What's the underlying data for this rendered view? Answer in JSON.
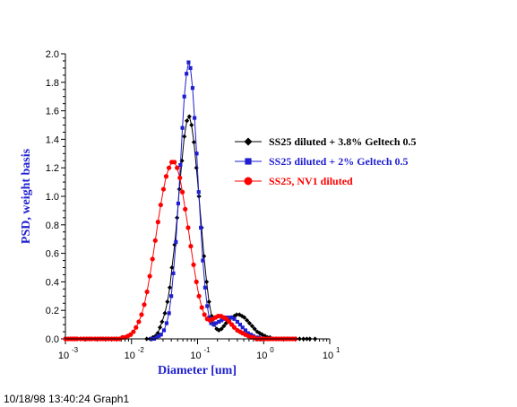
{
  "chart_data": {
    "type": "line",
    "title": "",
    "xlabel": "Diameter [um]",
    "ylabel": "PSD, weight basis",
    "xscale": "log",
    "xlim": [
      0.001,
      10
    ],
    "ylim": [
      0.0,
      2.0
    ],
    "x_ticks": [
      {
        "value": 0.001,
        "base": "10",
        "exp": "-3"
      },
      {
        "value": 0.01,
        "base": "10",
        "exp": "-2"
      },
      {
        "value": 0.1,
        "base": "10",
        "exp": "-1"
      },
      {
        "value": 1,
        "base": "10",
        "exp": "0"
      },
      {
        "value": 10,
        "base": "10",
        "exp": "1"
      }
    ],
    "y_ticks": [
      "0.0",
      "0.2",
      "0.4",
      "0.6",
      "0.8",
      "1.0",
      "1.2",
      "1.4",
      "1.6",
      "1.8",
      "2.0"
    ],
    "legend_position": "right",
    "series": [
      {
        "name": "SS25 diluted + 3.8% Geltech 0.5",
        "color": "#000000",
        "marker": "diamond",
        "x": [
          0.017,
          0.019,
          0.021,
          0.023,
          0.025,
          0.027,
          0.029,
          0.032,
          0.035,
          0.038,
          0.041,
          0.045,
          0.049,
          0.053,
          0.058,
          0.063,
          0.069,
          0.075,
          0.081,
          0.088,
          0.096,
          0.105,
          0.115,
          0.125,
          0.137,
          0.149,
          0.163,
          0.178,
          0.195,
          0.21,
          0.23,
          0.25,
          0.27,
          0.3,
          0.33,
          0.36,
          0.39,
          0.43,
          0.47,
          0.51,
          0.56,
          0.61,
          0.67,
          0.73,
          0.8,
          0.87,
          0.95,
          1.05,
          1.15,
          1.25,
          1.4,
          1.55,
          1.7,
          1.9,
          2.1,
          2.3,
          2.5,
          2.8,
          3.1,
          3.5,
          4.0,
          4.5,
          5.0,
          6.0
        ],
        "y": [
          0.0,
          0.0,
          0.01,
          0.02,
          0.04,
          0.08,
          0.12,
          0.18,
          0.26,
          0.36,
          0.5,
          0.66,
          0.85,
          1.05,
          1.25,
          1.42,
          1.53,
          1.56,
          1.5,
          1.38,
          1.2,
          1.0,
          0.78,
          0.58,
          0.4,
          0.26,
          0.16,
          0.1,
          0.07,
          0.06,
          0.07,
          0.09,
          0.11,
          0.13,
          0.15,
          0.16,
          0.17,
          0.17,
          0.16,
          0.15,
          0.13,
          0.11,
          0.09,
          0.07,
          0.05,
          0.04,
          0.03,
          0.02,
          0.01,
          0.01,
          0.0,
          0.0,
          0.0,
          0.0,
          0.0,
          0.0,
          0.0,
          0.0,
          0.0,
          0.0,
          0.0,
          0.0,
          0.0,
          0.0
        ]
      },
      {
        "name": "SS25 diluted + 2% Geltech 0.5",
        "color": "#1f1fd0",
        "marker": "square",
        "x": [
          0.02,
          0.022,
          0.024,
          0.026,
          0.028,
          0.031,
          0.034,
          0.037,
          0.04,
          0.043,
          0.047,
          0.051,
          0.055,
          0.059,
          0.063,
          0.068,
          0.073,
          0.078,
          0.084,
          0.09,
          0.097,
          0.104,
          0.112,
          0.12,
          0.13,
          0.14,
          0.15,
          0.16,
          0.175,
          0.19,
          0.21,
          0.23,
          0.25,
          0.27,
          0.3,
          0.33,
          0.36,
          0.4,
          0.44,
          0.48,
          0.53,
          0.58,
          0.64,
          0.7,
          0.77,
          0.85,
          0.93,
          1.02,
          1.12,
          1.25,
          1.4,
          1.6,
          1.8,
          2.0,
          2.3,
          2.6,
          3.0
        ],
        "y": [
          0.0,
          0.0,
          0.01,
          0.02,
          0.03,
          0.06,
          0.11,
          0.18,
          0.3,
          0.46,
          0.68,
          0.95,
          1.22,
          1.48,
          1.7,
          1.86,
          1.94,
          1.9,
          1.76,
          1.55,
          1.3,
          1.03,
          0.78,
          0.55,
          0.36,
          0.23,
          0.15,
          0.11,
          0.1,
          0.11,
          0.12,
          0.13,
          0.14,
          0.15,
          0.15,
          0.15,
          0.14,
          0.12,
          0.1,
          0.08,
          0.06,
          0.04,
          0.03,
          0.02,
          0.01,
          0.01,
          0.0,
          0.0,
          0.0,
          0.0,
          0.0,
          0.0,
          0.0,
          0.0,
          0.0,
          0.0,
          0.0
        ]
      },
      {
        "name": "SS25, NV1 diluted",
        "color": "#ff0000",
        "marker": "circle",
        "x": [
          0.001,
          0.0011,
          0.0012,
          0.0013,
          0.0014,
          0.0015,
          0.0017,
          0.0019,
          0.0021,
          0.0023,
          0.0025,
          0.0028,
          0.0031,
          0.0034,
          0.0037,
          0.0041,
          0.0045,
          0.005,
          0.0055,
          0.006,
          0.0066,
          0.0073,
          0.008,
          0.0088,
          0.0097,
          0.0107,
          0.0117,
          0.0129,
          0.0142,
          0.0156,
          0.0172,
          0.0189,
          0.0208,
          0.0229,
          0.0252,
          0.0277,
          0.0305,
          0.0335,
          0.0369,
          0.0406,
          0.0446,
          0.049,
          0.054,
          0.059,
          0.065,
          0.072,
          0.079,
          0.087,
          0.096,
          0.105,
          0.116,
          0.127,
          0.14,
          0.154,
          0.17,
          0.187,
          0.205,
          0.226,
          0.248,
          0.273,
          0.3,
          0.33,
          0.36,
          0.4,
          0.44,
          0.48,
          0.53,
          0.59,
          0.65,
          0.71,
          0.78,
          0.86,
          0.95,
          1.04,
          1.15,
          1.26,
          1.39,
          1.53,
          1.68,
          1.85,
          2.03,
          2.24,
          2.46,
          2.7,
          3.0
        ],
        "y": [
          0.0,
          0.0,
          0.0,
          0.0,
          0.0,
          0.0,
          0.0,
          0.0,
          0.0,
          0.0,
          0.0,
          0.0,
          0.0,
          0.0,
          0.0,
          0.0,
          0.0,
          0.0,
          0.0,
          0.0,
          0.0,
          0.01,
          0.01,
          0.02,
          0.03,
          0.05,
          0.08,
          0.12,
          0.17,
          0.24,
          0.33,
          0.44,
          0.56,
          0.69,
          0.82,
          0.94,
          1.05,
          1.14,
          1.2,
          1.24,
          1.24,
          1.2,
          1.13,
          1.03,
          0.91,
          0.78,
          0.65,
          0.52,
          0.4,
          0.3,
          0.22,
          0.17,
          0.14,
          0.13,
          0.14,
          0.15,
          0.16,
          0.16,
          0.15,
          0.14,
          0.12,
          0.1,
          0.08,
          0.06,
          0.05,
          0.04,
          0.03,
          0.02,
          0.01,
          0.01,
          0.0,
          0.0,
          0.0,
          0.0,
          0.0,
          0.0,
          0.0,
          0.0,
          0.0,
          0.0,
          0.0,
          0.0,
          0.0,
          0.0,
          0.0
        ]
      }
    ]
  },
  "footer": {
    "text": "10/18/98 13:40:24 Graph1"
  }
}
